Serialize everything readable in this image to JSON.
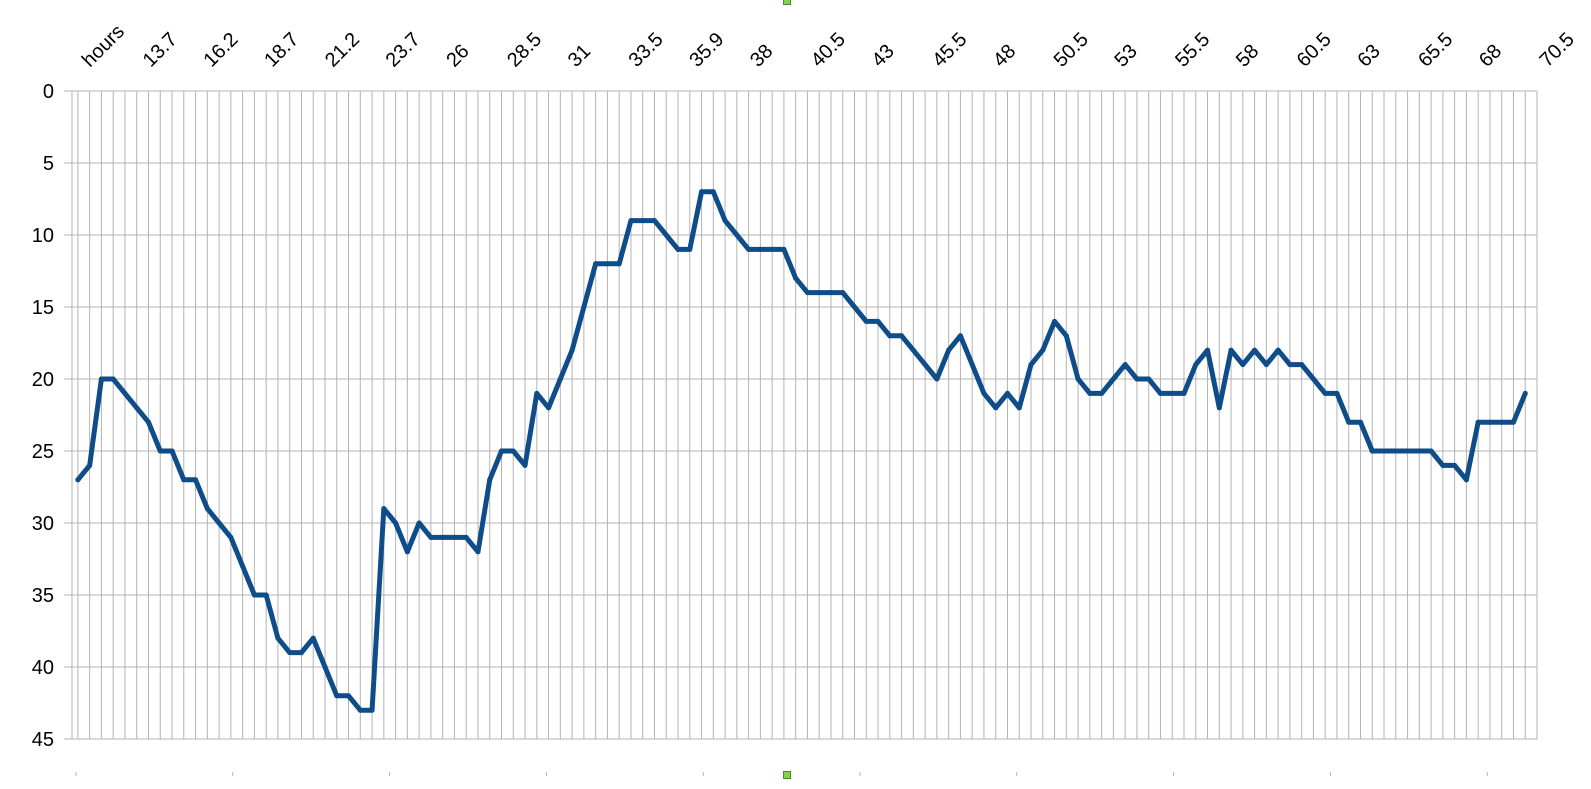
{
  "colors": {
    "series": "#0f4c8a",
    "grid": "#b3b3b3",
    "axis": "#b3b3b3",
    "handle": "#7fd34e"
  },
  "chart_data": {
    "type": "line",
    "title": "",
    "xlabel": "",
    "ylabel": "",
    "ylim": [
      0,
      45
    ],
    "y_axis_reversed": true,
    "y_ticks": [
      0,
      5,
      10,
      15,
      20,
      25,
      30,
      35,
      40,
      45
    ],
    "grid": "on",
    "legend": "none",
    "x_tick_labels": [
      "hours",
      "13.7",
      "16.2",
      "18.7",
      "21.2",
      "23.7",
      "26",
      "28.5",
      "31",
      "33.5",
      "35.9",
      "38",
      "40.5",
      "43",
      "45.5",
      "48",
      "50.5",
      "53",
      "55.5",
      "58",
      "60.5",
      "63",
      "65.5",
      "68",
      "70.5"
    ],
    "series": [
      {
        "values": [
          27,
          26,
          20,
          20,
          21,
          22,
          23,
          25,
          25,
          27,
          27,
          29,
          30,
          31,
          33,
          35,
          35,
          38,
          39,
          39,
          38,
          40,
          42,
          42,
          43,
          43,
          29,
          30,
          32,
          30,
          31,
          31,
          31,
          31,
          32,
          27,
          25,
          25,
          26,
          21,
          22,
          20,
          18,
          15,
          12,
          12,
          12,
          9,
          9,
          9,
          10,
          11,
          11,
          7,
          7,
          9,
          10,
          11,
          11,
          11,
          11,
          13,
          14,
          14,
          14,
          14,
          15,
          16,
          16,
          17,
          17,
          18,
          19,
          20,
          18,
          17,
          19,
          21,
          22,
          21,
          22,
          19,
          18,
          16,
          17,
          20,
          21,
          21,
          20,
          19,
          20,
          20,
          21,
          21,
          21,
          19,
          18,
          22,
          18,
          19,
          18,
          19,
          18,
          19,
          19,
          20,
          21,
          21,
          23,
          23,
          25,
          25,
          25,
          25,
          25,
          25,
          26,
          26,
          27,
          23,
          23,
          23,
          23,
          21
        ]
      }
    ]
  }
}
